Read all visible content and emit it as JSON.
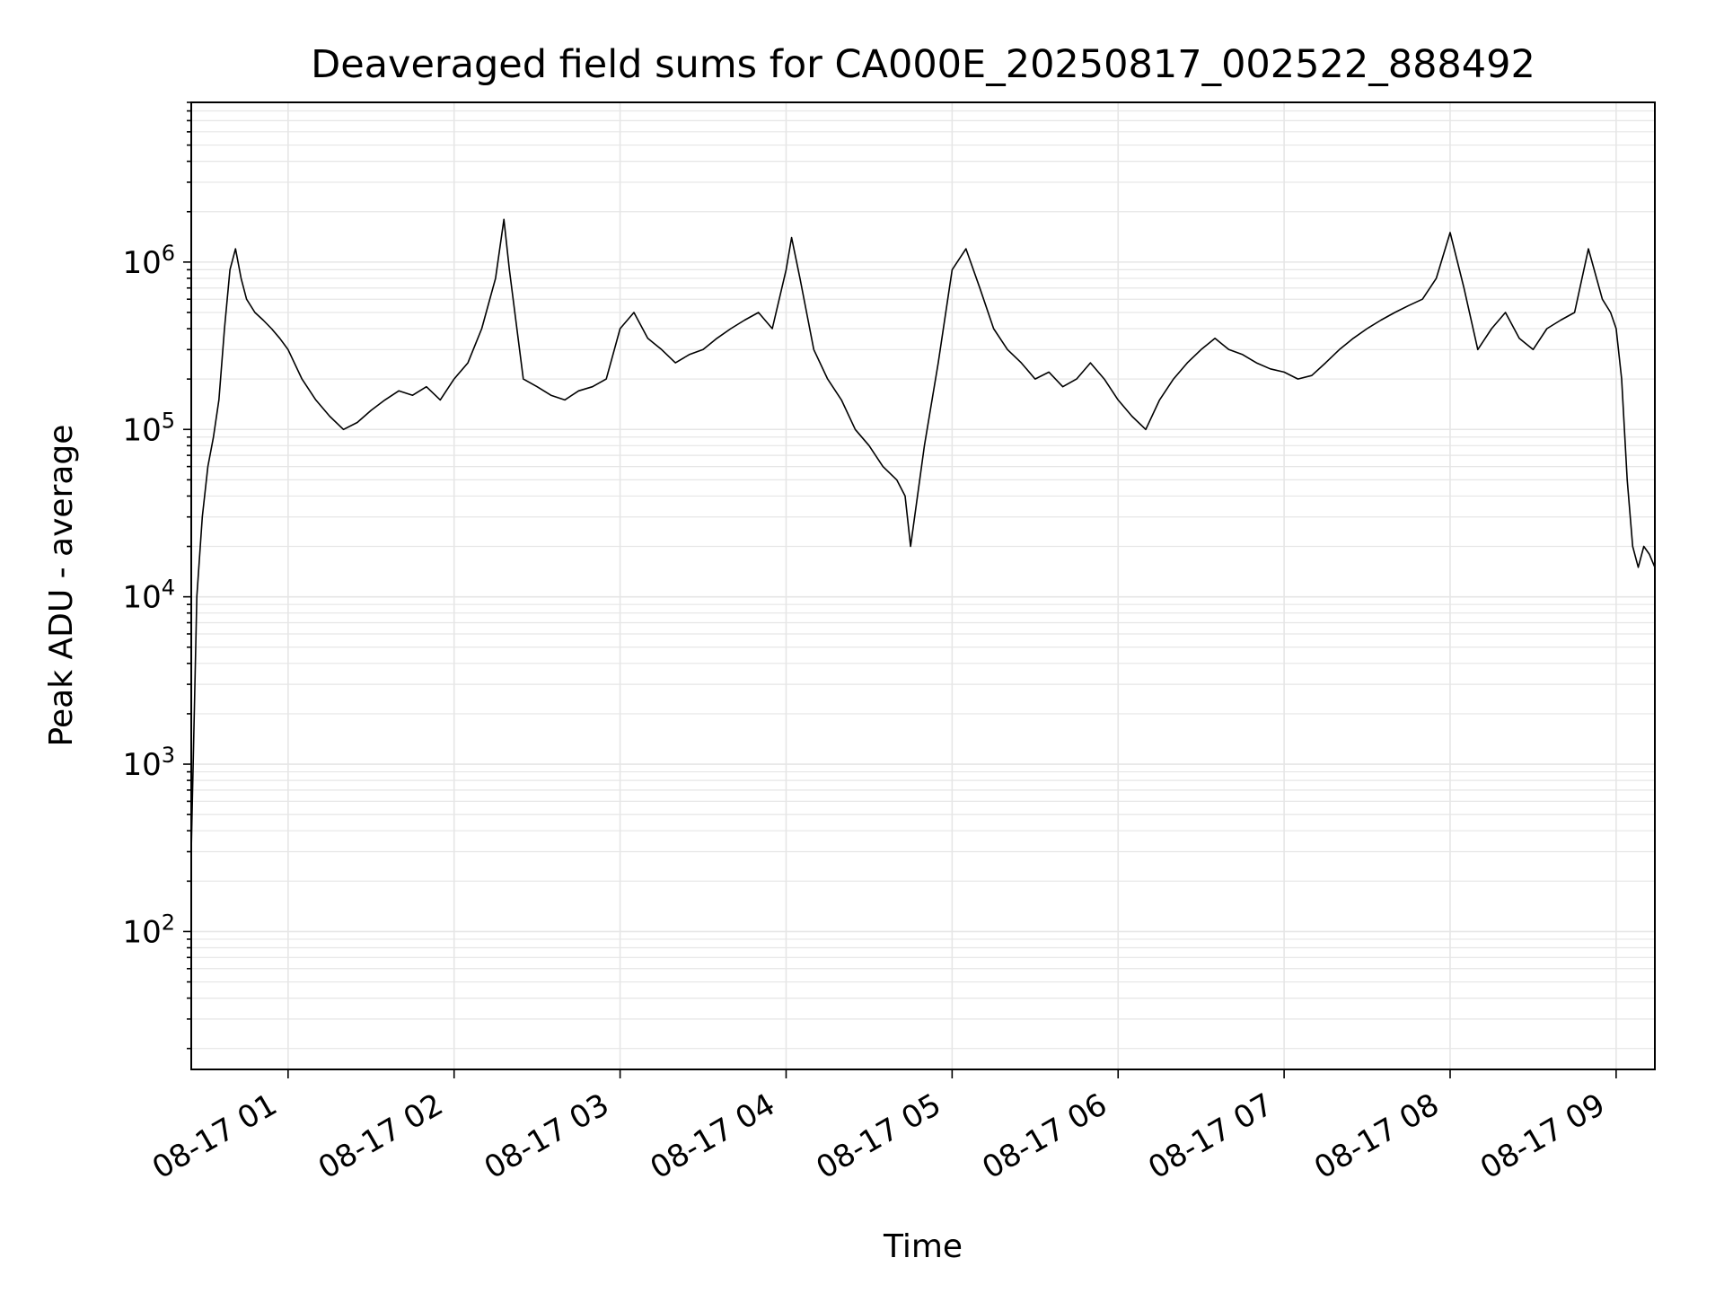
{
  "chart_data": {
    "type": "line",
    "title": "Deaveraged field sums for CA000E_20250817_002522_888492",
    "xlabel": "Time",
    "ylabel": "Peak ADU - average",
    "y_scale": "log",
    "ylim": [
      15,
      9000000
    ],
    "xlim": [
      "08-17 00:25",
      "08-17 09:14"
    ],
    "grid": "on (major and minor)",
    "x_tick_labels": [
      "08-17 01",
      "08-17 02",
      "08-17 03",
      "08-17 04",
      "08-17 05",
      "08-17 06",
      "08-17 07",
      "08-17 08",
      "08-17 09"
    ],
    "x_tick_times": [
      "08-17 01:00",
      "08-17 02:00",
      "08-17 03:00",
      "08-17 04:00",
      "08-17 05:00",
      "08-17 06:00",
      "08-17 07:00",
      "08-17 08:00",
      "08-17 09:00"
    ],
    "y_tick_labels": [
      {
        "base": "10",
        "exp": "2",
        "value": 100
      },
      {
        "base": "10",
        "exp": "3",
        "value": 1000
      },
      {
        "base": "10",
        "exp": "4",
        "value": 10000
      },
      {
        "base": "10",
        "exp": "5",
        "value": 100000
      },
      {
        "base": "10",
        "exp": "6",
        "value": 1000000
      }
    ],
    "line_color": "#000000",
    "grid_color": "#e6e6e6",
    "series": [
      {
        "x": [
          "08-17 00:25",
          "08-17 00:27",
          "08-17 00:29",
          "08-17 00:31",
          "08-17 00:33",
          "08-17 00:35",
          "08-17 00:37",
          "08-17 00:39",
          "08-17 00:41",
          "08-17 00:43",
          "08-17 00:45",
          "08-17 00:48",
          "08-17 00:51",
          "08-17 00:54",
          "08-17 00:57",
          "08-17 01:00",
          "08-17 01:05",
          "08-17 01:10",
          "08-17 01:15",
          "08-17 01:20",
          "08-17 01:25",
          "08-17 01:30",
          "08-17 01:35",
          "08-17 01:40",
          "08-17 01:45",
          "08-17 01:50",
          "08-17 01:55",
          "08-17 02:00",
          "08-17 02:05",
          "08-17 02:10",
          "08-17 02:15",
          "08-17 02:18",
          "08-17 02:20",
          "08-17 02:25",
          "08-17 02:30",
          "08-17 02:35",
          "08-17 02:40",
          "08-17 02:45",
          "08-17 02:50",
          "08-17 02:55",
          "08-17 03:00",
          "08-17 03:05",
          "08-17 03:10",
          "08-17 03:15",
          "08-17 03:20",
          "08-17 03:25",
          "08-17 03:30",
          "08-17 03:35",
          "08-17 03:40",
          "08-17 03:45",
          "08-17 03:50",
          "08-17 03:55",
          "08-17 04:00",
          "08-17 04:02",
          "08-17 04:05",
          "08-17 04:10",
          "08-17 04:15",
          "08-17 04:20",
          "08-17 04:25",
          "08-17 04:30",
          "08-17 04:35",
          "08-17 04:40",
          "08-17 04:43",
          "08-17 04:45",
          "08-17 04:50",
          "08-17 04:55",
          "08-17 05:00",
          "08-17 05:05",
          "08-17 05:10",
          "08-17 05:15",
          "08-17 05:20",
          "08-17 05:25",
          "08-17 05:30",
          "08-17 05:35",
          "08-17 05:40",
          "08-17 05:45",
          "08-17 05:50",
          "08-17 05:55",
          "08-17 06:00",
          "08-17 06:05",
          "08-17 06:10",
          "08-17 06:15",
          "08-17 06:20",
          "08-17 06:25",
          "08-17 06:30",
          "08-17 06:35",
          "08-17 06:40",
          "08-17 06:45",
          "08-17 06:50",
          "08-17 06:55",
          "08-17 07:00",
          "08-17 07:05",
          "08-17 07:10",
          "08-17 07:15",
          "08-17 07:20",
          "08-17 07:25",
          "08-17 07:30",
          "08-17 07:35",
          "08-17 07:40",
          "08-17 07:45",
          "08-17 07:50",
          "08-17 07:55",
          "08-17 08:00",
          "08-17 08:05",
          "08-17 08:10",
          "08-17 08:15",
          "08-17 08:20",
          "08-17 08:25",
          "08-17 08:30",
          "08-17 08:35",
          "08-17 08:40",
          "08-17 08:45",
          "08-17 08:50",
          "08-17 08:55",
          "08-17 08:58",
          "08-17 09:00",
          "08-17 09:02",
          "08-17 09:04",
          "08-17 09:06",
          "08-17 09:08",
          "08-17 09:10",
          "08-17 09:12",
          "08-17 09:14"
        ],
        "y": [
          300,
          10000,
          30000,
          60000,
          90000,
          150000,
          400000,
          900000,
          1200000,
          800000,
          600000,
          500000,
          450000,
          400000,
          350000,
          300000,
          200000,
          150000,
          120000,
          100000,
          110000,
          130000,
          150000,
          170000,
          160000,
          180000,
          150000,
          200000,
          250000,
          400000,
          800000,
          1800000,
          900000,
          200000,
          180000,
          160000,
          150000,
          170000,
          180000,
          200000,
          400000,
          500000,
          350000,
          300000,
          250000,
          280000,
          300000,
          350000,
          400000,
          450000,
          500000,
          400000,
          900000,
          1400000,
          800000,
          300000,
          200000,
          150000,
          100000,
          80000,
          60000,
          50000,
          40000,
          20000,
          80000,
          250000,
          900000,
          1200000,
          700000,
          400000,
          300000,
          250000,
          200000,
          220000,
          180000,
          200000,
          250000,
          200000,
          150000,
          120000,
          100000,
          150000,
          200000,
          250000,
          300000,
          350000,
          300000,
          280000,
          250000,
          230000,
          220000,
          200000,
          210000,
          250000,
          300000,
          350000,
          400000,
          450000,
          500000,
          550000,
          600000,
          800000,
          1500000,
          700000,
          300000,
          400000,
          500000,
          350000,
          300000,
          400000,
          450000,
          500000,
          1200000,
          600000,
          500000,
          400000,
          200000,
          50000,
          20000,
          15000,
          20000,
          18000,
          15000
        ]
      }
    ]
  }
}
